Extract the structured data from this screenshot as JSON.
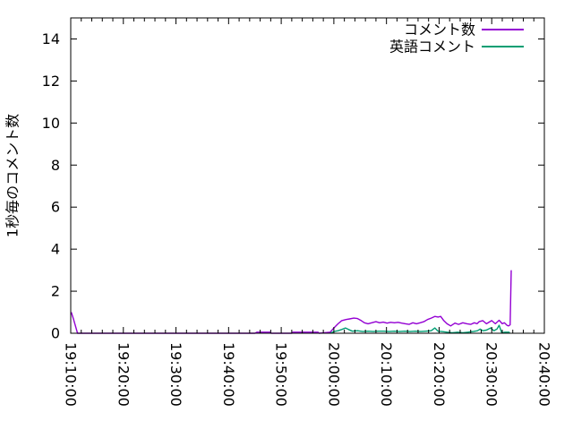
{
  "chart_data": {
    "type": "line",
    "title": "",
    "xlabel": "",
    "ylabel": "1秒毎のコメント数",
    "legend_position": "top-right-inside",
    "grid": false,
    "ylim": [
      0,
      15
    ],
    "y_ticks": [
      0,
      2,
      4,
      6,
      8,
      10,
      12,
      14
    ],
    "x_range_minutes": [
      0,
      90
    ],
    "x_minor_tick_interval_minutes": 2,
    "x_ticks": [
      {
        "label": "19:10:00",
        "t": 0
      },
      {
        "label": "19:20:00",
        "t": 10
      },
      {
        "label": "19:30:00",
        "t": 20
      },
      {
        "label": "19:40:00",
        "t": 30
      },
      {
        "label": "19:50:00",
        "t": 40
      },
      {
        "label": "20:00:00",
        "t": 50
      },
      {
        "label": "20:10:00",
        "t": 60
      },
      {
        "label": "20:20:00",
        "t": 70
      },
      {
        "label": "20:30:00",
        "t": 80
      },
      {
        "label": "20:40:00",
        "t": 90
      }
    ],
    "series": [
      {
        "name": "コメント数",
        "color": "#9400d3",
        "points": [
          [
            0.1,
            1.0
          ],
          [
            0.5,
            0.7
          ],
          [
            1.3,
            0
          ],
          [
            5,
            0
          ],
          [
            10,
            0
          ],
          [
            15,
            0
          ],
          [
            20,
            0
          ],
          [
            25,
            0
          ],
          [
            30,
            0
          ],
          [
            35,
            0
          ],
          [
            35.4,
            0.05
          ],
          [
            37.9,
            0.05
          ],
          [
            38.1,
            0
          ],
          [
            42,
            0
          ],
          [
            42.2,
            0.05
          ],
          [
            47,
            0.05
          ],
          [
            47.2,
            0
          ],
          [
            49.3,
            0.05
          ],
          [
            50,
            0.25
          ],
          [
            50.8,
            0.45
          ],
          [
            51.5,
            0.6
          ],
          [
            52.3,
            0.65
          ],
          [
            53,
            0.68
          ],
          [
            53.8,
            0.72
          ],
          [
            54.5,
            0.7
          ],
          [
            55.2,
            0.6
          ],
          [
            55.8,
            0.5
          ],
          [
            56.5,
            0.45
          ],
          [
            57.2,
            0.5
          ],
          [
            58,
            0.55
          ],
          [
            58.7,
            0.5
          ],
          [
            59.4,
            0.53
          ],
          [
            60.1,
            0.48
          ],
          [
            60.8,
            0.52
          ],
          [
            61.5,
            0.5
          ],
          [
            62.2,
            0.52
          ],
          [
            62.9,
            0.48
          ],
          [
            63.6,
            0.45
          ],
          [
            64.3,
            0.42
          ],
          [
            65,
            0.5
          ],
          [
            65.7,
            0.45
          ],
          [
            66.4,
            0.5
          ],
          [
            67.1,
            0.55
          ],
          [
            67.8,
            0.65
          ],
          [
            68.5,
            0.72
          ],
          [
            69.2,
            0.8
          ],
          [
            69.8,
            0.77
          ],
          [
            70.3,
            0.8
          ],
          [
            70.9,
            0.6
          ],
          [
            71.5,
            0.45
          ],
          [
            72.2,
            0.35
          ],
          [
            73,
            0.48
          ],
          [
            73.7,
            0.42
          ],
          [
            74.5,
            0.5
          ],
          [
            75.3,
            0.45
          ],
          [
            76,
            0.42
          ],
          [
            76.7,
            0.5
          ],
          [
            77.2,
            0.45
          ],
          [
            77.6,
            0.55
          ],
          [
            78.3,
            0.6
          ],
          [
            79,
            0.45
          ],
          [
            80,
            0.6
          ],
          [
            80.7,
            0.45
          ],
          [
            81.4,
            0.62
          ],
          [
            82,
            0.45
          ],
          [
            82.4,
            0.5
          ],
          [
            82.9,
            0.38
          ],
          [
            83.2,
            0.35
          ],
          [
            83.5,
            0.4
          ],
          [
            83.7,
            3.0
          ]
        ]
      },
      {
        "name": "英語コメント",
        "color": "#009e73",
        "points": [
          [
            49.3,
            0
          ],
          [
            50,
            0.08
          ],
          [
            50.8,
            0.12
          ],
          [
            51.5,
            0.18
          ],
          [
            52.2,
            0.25
          ],
          [
            52.8,
            0.18
          ],
          [
            53.5,
            0.1
          ],
          [
            54.5,
            0.12
          ],
          [
            55.5,
            0.08
          ],
          [
            56.5,
            0.1
          ],
          [
            57.5,
            0.08
          ],
          [
            58.5,
            0.1
          ],
          [
            59.5,
            0.1
          ],
          [
            60.5,
            0.08
          ],
          [
            61.5,
            0.1
          ],
          [
            62.5,
            0.08
          ],
          [
            63.5,
            0.1
          ],
          [
            64.5,
            0.08
          ],
          [
            65.5,
            0.1
          ],
          [
            66.5,
            0.08
          ],
          [
            67.5,
            0.1
          ],
          [
            68.5,
            0.12
          ],
          [
            69.2,
            0.25
          ],
          [
            69.8,
            0.1
          ],
          [
            70.5,
            0.08
          ],
          [
            71.5,
            0.05
          ],
          [
            72.5,
            0.02
          ],
          [
            73.5,
            0.05
          ],
          [
            74.5,
            0.02
          ],
          [
            75.5,
            0.05
          ],
          [
            76.5,
            0.08
          ],
          [
            77.3,
            0.12
          ],
          [
            77.8,
            0.2
          ],
          [
            78.3,
            0.12
          ],
          [
            79,
            0.15
          ],
          [
            79.8,
            0.25
          ],
          [
            80.4,
            0.12
          ],
          [
            81,
            0.2
          ],
          [
            81.4,
            0.38
          ],
          [
            81.9,
            0.02
          ],
          [
            82.5,
            0.05
          ],
          [
            83.3,
            0.05
          ],
          [
            83.4,
            0
          ]
        ]
      }
    ]
  }
}
